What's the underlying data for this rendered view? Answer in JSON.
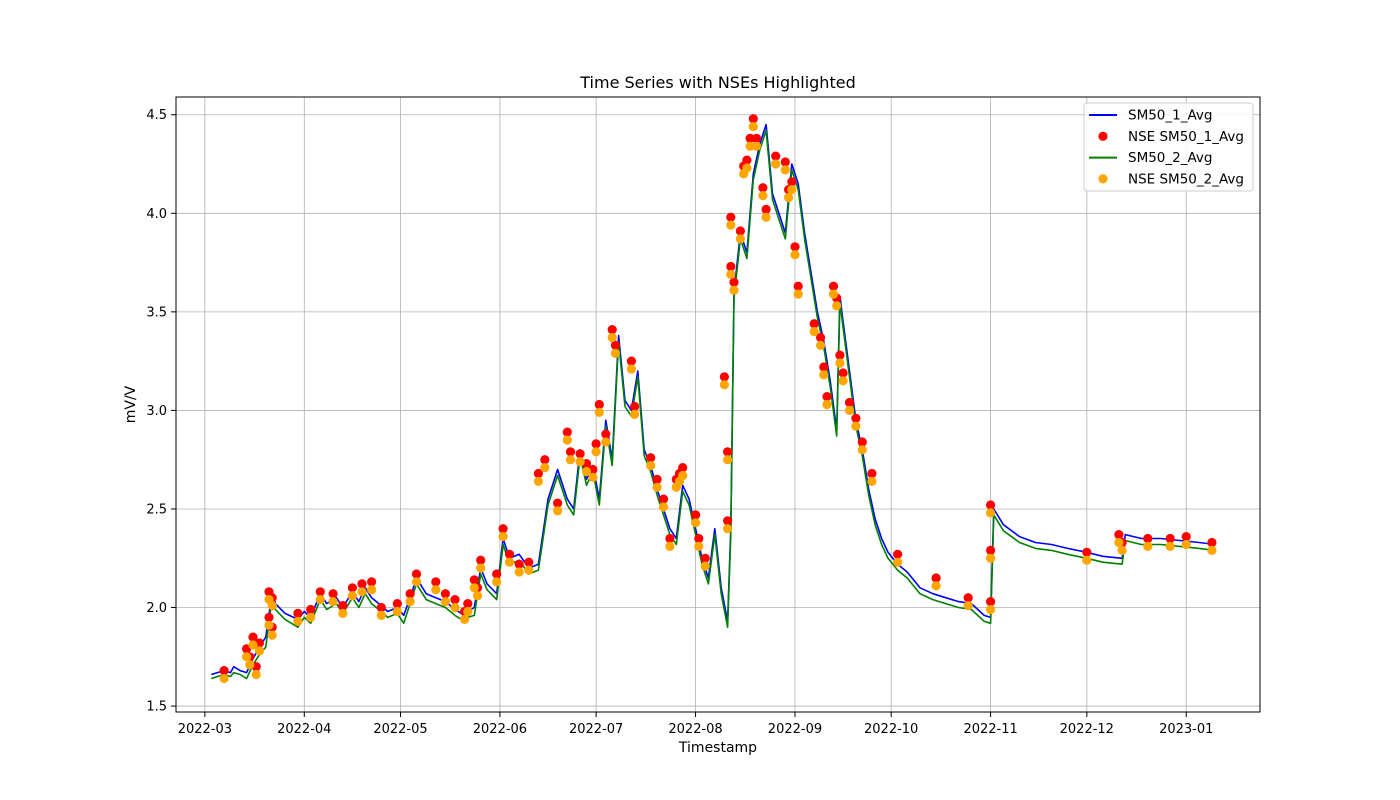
{
  "chart_data": {
    "type": "line",
    "title": "Time Series with NSEs Highlighted",
    "xlabel": "Timestamp",
    "ylabel": "mV/V",
    "xlim": [
      "2022-02-20",
      "2023-01-24"
    ],
    "ylim": [
      1.47,
      4.59
    ],
    "grid": true,
    "legend_position": "top-right",
    "x_ticks": [
      "2022-03",
      "2022-04",
      "2022-05",
      "2022-06",
      "2022-07",
      "2022-08",
      "2022-09",
      "2022-10",
      "2022-11",
      "2022-12",
      "2023-01"
    ],
    "y_ticks": [
      1.5,
      2.0,
      2.5,
      3.0,
      3.5,
      4.0,
      4.5
    ],
    "y_tick_labels": [
      "1.5",
      "2.0",
      "2.5",
      "3.0",
      "3.5",
      "4.0",
      "4.5"
    ],
    "series": [
      {
        "name": "SM50_1_Avg",
        "kind": "line",
        "color": "#0000ff",
        "x": [
          "2022-03-03",
          "2022-03-07",
          "2022-03-09",
          "2022-03-10",
          "2022-03-12",
          "2022-03-14",
          "2022-03-16",
          "2022-03-18",
          "2022-03-20",
          "2022-03-22",
          "2022-03-23",
          "2022-03-26",
          "2022-03-30",
          "2022-04-01",
          "2022-04-03",
          "2022-04-06",
          "2022-04-08",
          "2022-04-11",
          "2022-04-13",
          "2022-04-16",
          "2022-04-18",
          "2022-04-20",
          "2022-04-22",
          "2022-04-25",
          "2022-04-27",
          "2022-04-30",
          "2022-05-02",
          "2022-05-04",
          "2022-05-06",
          "2022-05-09",
          "2022-05-12",
          "2022-05-15",
          "2022-05-18",
          "2022-05-20",
          "2022-05-22",
          "2022-05-24",
          "2022-05-26",
          "2022-05-28",
          "2022-05-31",
          "2022-06-02",
          "2022-06-04",
          "2022-06-07",
          "2022-06-10",
          "2022-06-13",
          "2022-06-16",
          "2022-06-19",
          "2022-06-22",
          "2022-06-24",
          "2022-06-26",
          "2022-06-28",
          "2022-06-30",
          "2022-07-02",
          "2022-07-04",
          "2022-07-06",
          "2022-07-08",
          "2022-07-10",
          "2022-07-12",
          "2022-07-14",
          "2022-07-16",
          "2022-07-18",
          "2022-07-20",
          "2022-07-22",
          "2022-07-24",
          "2022-07-26",
          "2022-07-28",
          "2022-07-30",
          "2022-08-01",
          "2022-08-03",
          "2022-08-05",
          "2022-08-07",
          "2022-08-09",
          "2022-08-11",
          "2022-08-12",
          "2022-08-13",
          "2022-08-15",
          "2022-08-17",
          "2022-08-19",
          "2022-08-21",
          "2022-08-23",
          "2022-08-25",
          "2022-08-27",
          "2022-08-29",
          "2022-08-31",
          "2022-09-02",
          "2022-09-04",
          "2022-09-06",
          "2022-09-08",
          "2022-09-10",
          "2022-09-12",
          "2022-09-14",
          "2022-09-15",
          "2022-09-16",
          "2022-09-18",
          "2022-09-20",
          "2022-09-22",
          "2022-09-24",
          "2022-09-26",
          "2022-09-28",
          "2022-09-30",
          "2022-10-03",
          "2022-10-06",
          "2022-10-10",
          "2022-10-14",
          "2022-10-18",
          "2022-10-22",
          "2022-10-26",
          "2022-10-30",
          "2022-11-01",
          "2022-11-02",
          "2022-11-05",
          "2022-11-10",
          "2022-11-15",
          "2022-11-20",
          "2022-11-25",
          "2022-12-01",
          "2022-12-06",
          "2022-12-12",
          "2022-12-13",
          "2022-12-18",
          "2022-12-24",
          "2022-12-30",
          "2023-01-05",
          "2023-01-10"
        ],
        "y": [
          1.66,
          1.68,
          1.67,
          1.7,
          1.68,
          1.67,
          1.74,
          1.8,
          1.85,
          2.08,
          2.02,
          1.97,
          1.94,
          1.98,
          1.95,
          2.07,
          2.02,
          2.05,
          2.0,
          2.08,
          2.03,
          2.1,
          2.05,
          2.01,
          1.98,
          2.0,
          1.96,
          2.05,
          2.15,
          2.07,
          2.05,
          2.03,
          1.99,
          1.97,
          1.98,
          2.0,
          2.2,
          2.12,
          2.07,
          2.35,
          2.25,
          2.27,
          2.2,
          2.22,
          2.55,
          2.7,
          2.55,
          2.5,
          2.8,
          2.65,
          2.72,
          2.55,
          2.95,
          2.75,
          3.38,
          3.05,
          3.0,
          3.2,
          2.8,
          2.72,
          2.6,
          2.5,
          2.4,
          2.35,
          2.62,
          2.55,
          2.4,
          2.25,
          2.15,
          2.4,
          2.1,
          1.93,
          2.4,
          3.6,
          3.9,
          3.8,
          4.2,
          4.35,
          4.45,
          4.1,
          4.0,
          3.9,
          4.25,
          4.15,
          3.9,
          3.7,
          3.5,
          3.35,
          3.15,
          2.9,
          3.58,
          3.45,
          3.2,
          2.95,
          2.8,
          2.6,
          2.45,
          2.35,
          2.28,
          2.22,
          2.18,
          2.1,
          2.07,
          2.05,
          2.03,
          2.02,
          1.96,
          1.95,
          2.5,
          2.42,
          2.36,
          2.33,
          2.32,
          2.3,
          2.28,
          2.26,
          2.25,
          2.37,
          2.35,
          2.35,
          2.34,
          2.33,
          2.32
        ],
        "_drop_keys": []
      },
      {
        "name": "NSE SM50_1_Avg",
        "kind": "scatter",
        "color": "#ff0000",
        "x": [
          "2022-03-07",
          "2022-03-14",
          "2022-03-15",
          "2022-03-16",
          "2022-03-17",
          "2022-03-18",
          "2022-03-21",
          "2022-03-21",
          "2022-03-22",
          "2022-03-22",
          "2022-03-30",
          "2022-04-03",
          "2022-04-06",
          "2022-04-10",
          "2022-04-13",
          "2022-04-16",
          "2022-04-19",
          "2022-04-22",
          "2022-04-25",
          "2022-04-30",
          "2022-05-04",
          "2022-05-06",
          "2022-05-12",
          "2022-05-15",
          "2022-05-18",
          "2022-05-21",
          "2022-05-22",
          "2022-05-24",
          "2022-05-25",
          "2022-05-26",
          "2022-05-31",
          "2022-06-02",
          "2022-06-04",
          "2022-06-07",
          "2022-06-10",
          "2022-06-13",
          "2022-06-15",
          "2022-06-19",
          "2022-06-22",
          "2022-06-23",
          "2022-06-26",
          "2022-06-28",
          "2022-06-30",
          "2022-07-01",
          "2022-07-02",
          "2022-07-04",
          "2022-07-06",
          "2022-07-07",
          "2022-07-12",
          "2022-07-13",
          "2022-07-18",
          "2022-07-20",
          "2022-07-22",
          "2022-07-24",
          "2022-07-26",
          "2022-07-27",
          "2022-07-28",
          "2022-08-01",
          "2022-08-02",
          "2022-08-04",
          "2022-08-10",
          "2022-08-11",
          "2022-08-11",
          "2022-08-12",
          "2022-08-12",
          "2022-08-13",
          "2022-08-15",
          "2022-08-16",
          "2022-08-17",
          "2022-08-18",
          "2022-08-19",
          "2022-08-20",
          "2022-08-22",
          "2022-08-23",
          "2022-08-26",
          "2022-08-29",
          "2022-08-30",
          "2022-08-31",
          "2022-09-01",
          "2022-09-02",
          "2022-09-07",
          "2022-09-09",
          "2022-09-10",
          "2022-09-11",
          "2022-09-13",
          "2022-09-14",
          "2022-09-15",
          "2022-09-16",
          "2022-09-18",
          "2022-09-20",
          "2022-09-22",
          "2022-09-25",
          "2022-10-03",
          "2022-10-15",
          "2022-10-25",
          "2022-11-01",
          "2022-11-01",
          "2022-11-01",
          "2022-12-01",
          "2022-12-11",
          "2022-12-12",
          "2022-12-20",
          "2022-12-27",
          "2023-01-01",
          "2023-01-09"
        ],
        "y": [
          1.68,
          1.79,
          1.75,
          1.85,
          1.7,
          1.82,
          2.08,
          1.95,
          1.9,
          2.05,
          1.97,
          1.99,
          2.08,
          2.07,
          2.01,
          2.1,
          2.12,
          2.13,
          2.0,
          2.02,
          2.07,
          2.17,
          2.13,
          2.07,
          2.04,
          1.98,
          2.02,
          2.14,
          2.1,
          2.24,
          2.17,
          2.4,
          2.27,
          2.22,
          2.23,
          2.68,
          2.75,
          2.53,
          2.89,
          2.79,
          2.78,
          2.73,
          2.7,
          2.83,
          3.03,
          2.88,
          3.41,
          3.33,
          3.25,
          3.02,
          2.76,
          2.65,
          2.55,
          2.35,
          2.65,
          2.68,
          2.71,
          2.47,
          2.35,
          2.25,
          3.17,
          2.79,
          2.44,
          3.73,
          3.98,
          3.65,
          3.91,
          4.24,
          4.27,
          4.38,
          4.48,
          4.38,
          4.13,
          4.02,
          4.29,
          4.26,
          4.12,
          4.16,
          3.83,
          3.63,
          3.44,
          3.37,
          3.22,
          3.07,
          3.63,
          3.57,
          3.28,
          3.19,
          3.04,
          2.96,
          2.84,
          2.68,
          2.27,
          2.15,
          2.05,
          2.52,
          2.29,
          2.03,
          2.28,
          2.37,
          2.33,
          2.35,
          2.35,
          2.36,
          2.33
        ]
      },
      {
        "name": "SM50_2_Avg",
        "kind": "line",
        "color": "#008000",
        "x": [
          "2022-03-03",
          "2022-03-07",
          "2022-03-09",
          "2022-03-10",
          "2022-03-12",
          "2022-03-14",
          "2022-03-16",
          "2022-03-18",
          "2022-03-20",
          "2022-03-22",
          "2022-03-23",
          "2022-03-26",
          "2022-03-30",
          "2022-04-01",
          "2022-04-03",
          "2022-04-06",
          "2022-04-08",
          "2022-04-11",
          "2022-04-13",
          "2022-04-16",
          "2022-04-18",
          "2022-04-20",
          "2022-04-22",
          "2022-04-25",
          "2022-04-27",
          "2022-04-30",
          "2022-05-02",
          "2022-05-04",
          "2022-05-06",
          "2022-05-09",
          "2022-05-12",
          "2022-05-15",
          "2022-05-18",
          "2022-05-20",
          "2022-05-22",
          "2022-05-24",
          "2022-05-26",
          "2022-05-28",
          "2022-05-31",
          "2022-06-02",
          "2022-06-04",
          "2022-06-07",
          "2022-06-10",
          "2022-06-13",
          "2022-06-16",
          "2022-06-19",
          "2022-06-22",
          "2022-06-24",
          "2022-06-26",
          "2022-06-28",
          "2022-06-30",
          "2022-07-02",
          "2022-07-04",
          "2022-07-06",
          "2022-07-08",
          "2022-07-10",
          "2022-07-12",
          "2022-07-14",
          "2022-07-16",
          "2022-07-18",
          "2022-07-20",
          "2022-07-22",
          "2022-07-24",
          "2022-07-26",
          "2022-07-28",
          "2022-07-30",
          "2022-08-01",
          "2022-08-03",
          "2022-08-05",
          "2022-08-07",
          "2022-08-09",
          "2022-08-11",
          "2022-08-12",
          "2022-08-13",
          "2022-08-15",
          "2022-08-17",
          "2022-08-19",
          "2022-08-21",
          "2022-08-23",
          "2022-08-25",
          "2022-08-27",
          "2022-08-29",
          "2022-08-31",
          "2022-09-02",
          "2022-09-04",
          "2022-09-06",
          "2022-09-08",
          "2022-09-10",
          "2022-09-12",
          "2022-09-14",
          "2022-09-15",
          "2022-09-16",
          "2022-09-18",
          "2022-09-20",
          "2022-09-22",
          "2022-09-24",
          "2022-09-26",
          "2022-09-28",
          "2022-09-30",
          "2022-10-03",
          "2022-10-06",
          "2022-10-10",
          "2022-10-14",
          "2022-10-18",
          "2022-10-22",
          "2022-10-26",
          "2022-10-30",
          "2022-11-01",
          "2022-11-02",
          "2022-11-05",
          "2022-11-10",
          "2022-11-15",
          "2022-11-20",
          "2022-11-25",
          "2022-12-01",
          "2022-12-06",
          "2022-12-12",
          "2022-12-13",
          "2022-12-18",
          "2022-12-24",
          "2022-12-30",
          "2023-01-05",
          "2023-01-10"
        ],
        "y": [
          1.64,
          1.66,
          1.65,
          1.67,
          1.66,
          1.64,
          1.71,
          1.76,
          1.8,
          2.05,
          1.99,
          1.94,
          1.9,
          1.95,
          1.92,
          2.04,
          1.99,
          2.02,
          1.97,
          2.05,
          2.0,
          2.07,
          2.02,
          1.98,
          1.95,
          1.97,
          1.92,
          2.02,
          2.12,
          2.04,
          2.02,
          2.0,
          1.96,
          1.94,
          1.95,
          1.96,
          2.17,
          2.09,
          2.04,
          2.32,
          2.22,
          2.24,
          2.17,
          2.19,
          2.52,
          2.67,
          2.52,
          2.47,
          2.77,
          2.62,
          2.69,
          2.52,
          2.92,
          2.72,
          3.35,
          3.02,
          2.97,
          3.17,
          2.77,
          2.69,
          2.57,
          2.47,
          2.37,
          2.32,
          2.59,
          2.52,
          2.37,
          2.22,
          2.12,
          2.37,
          2.07,
          1.9,
          2.37,
          3.57,
          3.87,
          3.77,
          4.17,
          4.32,
          4.42,
          4.07,
          3.97,
          3.87,
          4.22,
          4.12,
          3.87,
          3.67,
          3.47,
          3.32,
          3.12,
          2.87,
          3.55,
          3.42,
          3.17,
          2.92,
          2.77,
          2.57,
          2.42,
          2.32,
          2.25,
          2.19,
          2.15,
          2.07,
          2.04,
          2.02,
          2.0,
          1.99,
          1.93,
          1.92,
          2.47,
          2.39,
          2.33,
          2.3,
          2.29,
          2.27,
          2.25,
          2.23,
          2.22,
          2.34,
          2.32,
          2.32,
          2.31,
          2.3,
          2.29
        ]
      },
      {
        "name": "NSE SM50_2_Avg",
        "kind": "scatter",
        "color": "#ffa500",
        "x": [
          "2022-03-07",
          "2022-03-14",
          "2022-03-15",
          "2022-03-16",
          "2022-03-17",
          "2022-03-18",
          "2022-03-21",
          "2022-03-21",
          "2022-03-22",
          "2022-03-22",
          "2022-03-30",
          "2022-04-03",
          "2022-04-06",
          "2022-04-10",
          "2022-04-13",
          "2022-04-16",
          "2022-04-19",
          "2022-04-22",
          "2022-04-25",
          "2022-04-30",
          "2022-05-04",
          "2022-05-06",
          "2022-05-12",
          "2022-05-15",
          "2022-05-18",
          "2022-05-21",
          "2022-05-22",
          "2022-05-24",
          "2022-05-25",
          "2022-05-26",
          "2022-05-31",
          "2022-06-02",
          "2022-06-04",
          "2022-06-07",
          "2022-06-10",
          "2022-06-13",
          "2022-06-15",
          "2022-06-19",
          "2022-06-22",
          "2022-06-23",
          "2022-06-26",
          "2022-06-28",
          "2022-06-30",
          "2022-07-01",
          "2022-07-02",
          "2022-07-04",
          "2022-07-06",
          "2022-07-07",
          "2022-07-12",
          "2022-07-13",
          "2022-07-18",
          "2022-07-20",
          "2022-07-22",
          "2022-07-24",
          "2022-07-26",
          "2022-07-27",
          "2022-07-28",
          "2022-08-01",
          "2022-08-02",
          "2022-08-04",
          "2022-08-10",
          "2022-08-11",
          "2022-08-11",
          "2022-08-12",
          "2022-08-12",
          "2022-08-13",
          "2022-08-15",
          "2022-08-16",
          "2022-08-17",
          "2022-08-18",
          "2022-08-19",
          "2022-08-20",
          "2022-08-22",
          "2022-08-23",
          "2022-08-26",
          "2022-08-29",
          "2022-08-30",
          "2022-08-31",
          "2022-09-01",
          "2022-09-02",
          "2022-09-07",
          "2022-09-09",
          "2022-09-10",
          "2022-09-11",
          "2022-09-13",
          "2022-09-14",
          "2022-09-15",
          "2022-09-16",
          "2022-09-18",
          "2022-09-20",
          "2022-09-22",
          "2022-09-25",
          "2022-10-03",
          "2022-10-15",
          "2022-10-25",
          "2022-11-01",
          "2022-11-01",
          "2022-11-01",
          "2022-12-01",
          "2022-12-11",
          "2022-12-12",
          "2022-12-20",
          "2022-12-27",
          "2023-01-01",
          "2023-01-09"
        ],
        "y": [
          1.64,
          1.75,
          1.71,
          1.81,
          1.66,
          1.78,
          2.04,
          1.91,
          1.86,
          2.01,
          1.93,
          1.95,
          2.04,
          2.03,
          1.97,
          2.06,
          2.08,
          2.09,
          1.96,
          1.98,
          2.03,
          2.13,
          2.09,
          2.03,
          2.0,
          1.94,
          1.98,
          2.1,
          2.06,
          2.2,
          2.13,
          2.36,
          2.23,
          2.18,
          2.19,
          2.64,
          2.71,
          2.49,
          2.85,
          2.75,
          2.74,
          2.69,
          2.66,
          2.79,
          2.99,
          2.84,
          3.37,
          3.29,
          3.21,
          2.98,
          2.72,
          2.61,
          2.51,
          2.31,
          2.61,
          2.64,
          2.67,
          2.43,
          2.31,
          2.21,
          3.13,
          2.75,
          2.4,
          3.69,
          3.94,
          3.61,
          3.87,
          4.2,
          4.23,
          4.34,
          4.44,
          4.34,
          4.09,
          3.98,
          4.25,
          4.22,
          4.08,
          4.12,
          3.79,
          3.59,
          3.4,
          3.33,
          3.18,
          3.03,
          3.59,
          3.53,
          3.24,
          3.15,
          3.0,
          2.92,
          2.8,
          2.64,
          2.23,
          2.11,
          2.01,
          2.48,
          2.25,
          1.99,
          2.24,
          2.33,
          2.29,
          2.31,
          2.31,
          2.32,
          2.29
        ]
      }
    ]
  }
}
